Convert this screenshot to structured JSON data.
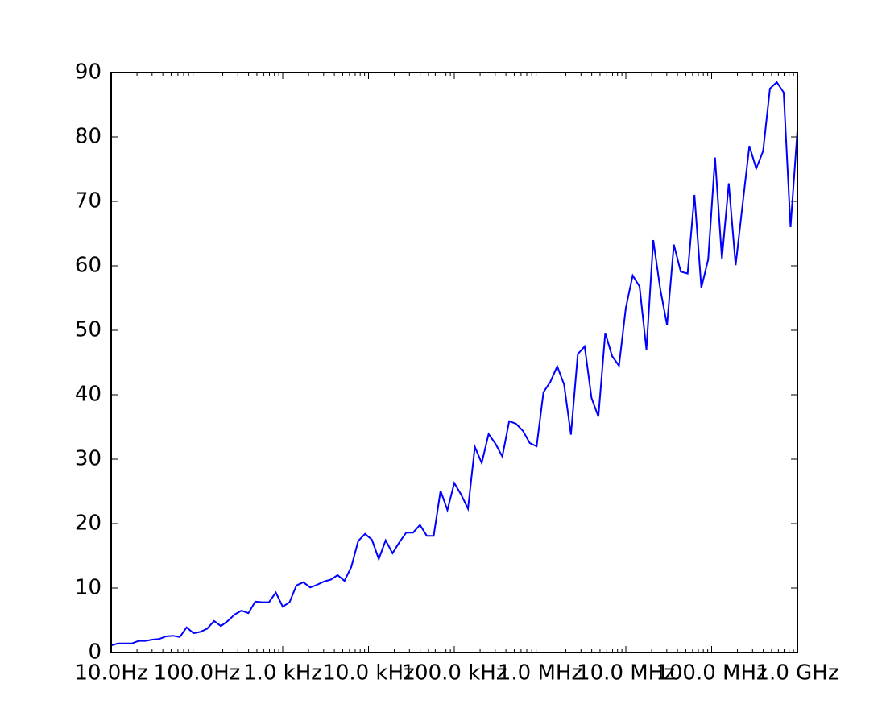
{
  "chart_data": {
    "type": "line",
    "xscale": "log",
    "x": [
      10,
      12.02,
      14.45,
      17.38,
      20.89,
      25.12,
      30.2,
      36.31,
      43.65,
      52.48,
      63.1,
      75.86,
      91.2,
      109.6,
      131.8,
      158.5,
      190.5,
      229.1,
      275.4,
      331.1,
      398.1,
      478.6,
      575.4,
      691.8,
      831.8,
      1000,
      1202,
      1445,
      1738,
      2089,
      2512,
      3020,
      3631,
      4365,
      5248,
      6310,
      7586,
      9120,
      10960,
      13180,
      15850,
      19050,
      22910,
      27540,
      33110,
      39810,
      47860,
      57540,
      69180,
      83180,
      100000,
      120200,
      144500,
      173800,
      208900,
      251200,
      302000,
      363100,
      436500,
      524800,
      631000,
      758600,
      912000,
      1096000,
      1318000,
      1585000,
      1905000,
      2291000,
      2754000,
      3311000,
      3981000,
      4786000,
      5754000,
      6918000,
      8318000,
      10000000,
      12020000,
      14450000,
      17380000,
      20890000,
      25120000,
      30200000,
      36310000,
      43650000,
      52480000,
      63100000,
      75860000,
      91200000,
      109600000,
      131800000,
      158500000,
      190500000,
      229100000,
      275400000,
      331100000,
      398100000,
      478600000,
      575400000,
      691800000,
      831800000,
      1000000000
    ],
    "series": [
      {
        "color": "#0000ff",
        "values": [
          1.1,
          1.4,
          1.4,
          1.4,
          1.8,
          1.8,
          2.0,
          2.1,
          2.5,
          2.6,
          2.4,
          3.9,
          3.0,
          3.2,
          3.7,
          4.9,
          4.1,
          4.9,
          5.9,
          6.5,
          6.1,
          7.9,
          7.8,
          7.8,
          9.3,
          7.1,
          7.8,
          10.4,
          10.9,
          10.1,
          10.5,
          11.0,
          11.3,
          12.0,
          11.1,
          13.3,
          17.3,
          18.4,
          17.5,
          14.5,
          17.4,
          15.4,
          17.1,
          18.6,
          18.6,
          19.8,
          18.1,
          18.1,
          25.1,
          22.1,
          26.3,
          24.5,
          22.3,
          31.9,
          29.4,
          33.9,
          32.4,
          30.4,
          35.9,
          35.5,
          34.4,
          32.5,
          32.0,
          40.4,
          42.0,
          44.4,
          41.6,
          33.8,
          46.3,
          47.5,
          39.5,
          36.6,
          49.6,
          46.0,
          44.5,
          53.5,
          58.5,
          56.8,
          47.0,
          64.0,
          56.5,
          50.8,
          63.3,
          59.1,
          58.8,
          71.0,
          56.6,
          61.0,
          76.8,
          61.1,
          72.8,
          60.1,
          69.4,
          78.6,
          75.1,
          77.8,
          87.5,
          88.5,
          86.9,
          66.0,
          81.0
        ]
      }
    ],
    "xlim": [
      10,
      1000000000
    ],
    "xticks": [
      {
        "value": 10,
        "label": "10.0Hz"
      },
      {
        "value": 100,
        "label": "100.0Hz"
      },
      {
        "value": 1000,
        "label": "1.0 kHz"
      },
      {
        "value": 10000,
        "label": "10.0 kHz"
      },
      {
        "value": 100000,
        "label": "100.0 kHz"
      },
      {
        "value": 1000000,
        "label": "1.0 MHz"
      },
      {
        "value": 10000000,
        "label": "10.0 MHz"
      },
      {
        "value": 100000000,
        "label": "100.0 MHz"
      },
      {
        "value": 1000000000,
        "label": "1.0 GHz"
      }
    ],
    "ylim": [
      0,
      90
    ],
    "yticks": [
      0,
      10,
      20,
      30,
      40,
      50,
      60,
      70,
      80,
      90
    ]
  }
}
